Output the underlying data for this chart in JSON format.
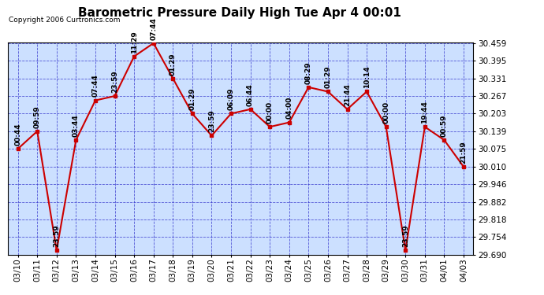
{
  "title": "Barometric Pressure Daily High Tue Apr 4 00:01",
  "copyright": "Copyright 2006 Curtronics.com",
  "background_color": "#ffffff",
  "plot_bg_color": "#cce0ff",
  "grid_color": "#3333cc",
  "line_color": "#cc0000",
  "marker_color": "#cc0000",
  "text_color": "#000000",
  "data_points": [
    {
      "date": "03/10",
      "value": 30.075,
      "label": "00:44"
    },
    {
      "date": "03/11",
      "value": 30.139,
      "label": "09:59"
    },
    {
      "date": "03/12",
      "value": 29.706,
      "label": "23:59"
    },
    {
      "date": "03/13",
      "value": 30.107,
      "label": "03:44"
    },
    {
      "date": "03/14",
      "value": 30.251,
      "label": "07:44"
    },
    {
      "date": "03/15",
      "value": 30.267,
      "label": "23:59"
    },
    {
      "date": "03/16",
      "value": 30.411,
      "label": "11:29"
    },
    {
      "date": "03/17",
      "value": 30.459,
      "label": "07:44"
    },
    {
      "date": "03/18",
      "value": 30.331,
      "label": "01:29"
    },
    {
      "date": "03/19",
      "value": 30.203,
      "label": "01:29"
    },
    {
      "date": "03/20",
      "value": 30.123,
      "label": "23:59"
    },
    {
      "date": "03/21",
      "value": 30.203,
      "label": "06:09"
    },
    {
      "date": "03/22",
      "value": 30.219,
      "label": "06:44"
    },
    {
      "date": "03/23",
      "value": 30.155,
      "label": "00:00"
    },
    {
      "date": "03/24",
      "value": 30.171,
      "label": "04:00"
    },
    {
      "date": "03/25",
      "value": 30.299,
      "label": "08:29"
    },
    {
      "date": "03/26",
      "value": 30.283,
      "label": "01:29"
    },
    {
      "date": "03/27",
      "value": 30.219,
      "label": "21:44"
    },
    {
      "date": "03/28",
      "value": 30.283,
      "label": "10:14"
    },
    {
      "date": "03/29",
      "value": 30.155,
      "label": "00:00"
    },
    {
      "date": "03/30",
      "value": 29.706,
      "label": "23:59"
    },
    {
      "date": "03/31",
      "value": 30.155,
      "label": "19:44"
    },
    {
      "date": "04/01",
      "value": 30.107,
      "label": "00:59"
    },
    {
      "date": "04/03",
      "value": 30.01,
      "label": "21:59"
    }
  ],
  "ylim_min": 29.69,
  "ylim_max": 30.459,
  "yticks": [
    29.69,
    29.754,
    29.818,
    29.882,
    29.946,
    30.01,
    30.075,
    30.139,
    30.203,
    30.267,
    30.331,
    30.395,
    30.459
  ],
  "title_fontsize": 11,
  "label_fontsize": 6.5,
  "tick_fontsize": 7.5,
  "copyright_fontsize": 6.5
}
